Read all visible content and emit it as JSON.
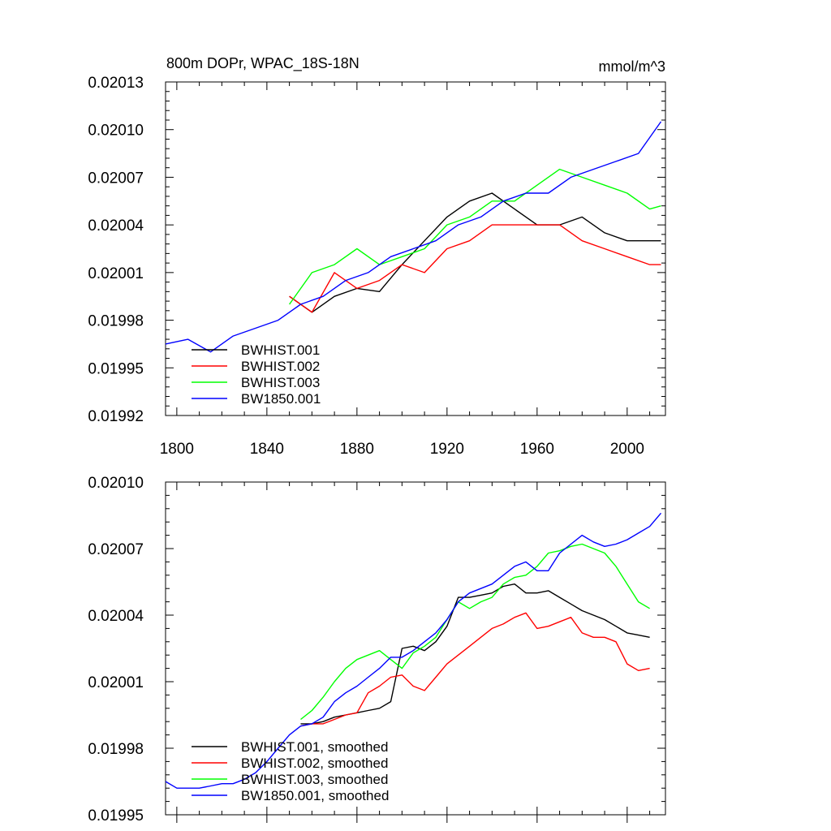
{
  "chart_data": [
    {
      "type": "line",
      "title_left": "800m DOPr, WPAC_18S-18N",
      "title_right": "mmol/m^3",
      "xlabel": "",
      "ylabel": "",
      "xlim": [
        1795,
        2017
      ],
      "ylim": [
        0.01992,
        0.02013
      ],
      "xticks": [
        1800,
        1840,
        1880,
        1920,
        1960,
        2000
      ],
      "xtick_labels": [
        "1800",
        "1840",
        "1880",
        "1920",
        "1960",
        "2000"
      ],
      "yticks": [
        0.01992,
        0.01995,
        0.01998,
        0.02001,
        0.02004,
        0.02007,
        0.0201,
        0.02013
      ],
      "ytick_labels": [
        "0.01992",
        "0.01995",
        "0.01998",
        "0.02001",
        "0.02004",
        "0.02007",
        "0.02010",
        "0.02013"
      ],
      "legend_position": "bottom-left",
      "series": [
        {
          "name": "BWHIST.001",
          "color": "#000000",
          "x": [
            1850,
            1860,
            1870,
            1880,
            1890,
            1900,
            1910,
            1920,
            1930,
            1940,
            1950,
            1960,
            1970,
            1980,
            1990,
            2000,
            2010,
            2015
          ],
          "y": [
            0.019995,
            0.019985,
            0.019995,
            0.02,
            0.019998,
            0.020015,
            0.02003,
            0.020045,
            0.020055,
            0.02006,
            0.02005,
            0.02004,
            0.02004,
            0.020045,
            0.020035,
            0.02003,
            0.02003,
            0.02003
          ]
        },
        {
          "name": "BWHIST.002",
          "color": "#ff0000",
          "x": [
            1850,
            1860,
            1870,
            1880,
            1890,
            1900,
            1910,
            1920,
            1930,
            1940,
            1950,
            1960,
            1970,
            1980,
            1990,
            2000,
            2010,
            2015
          ],
          "y": [
            0.019995,
            0.019985,
            0.02001,
            0.02,
            0.020005,
            0.020015,
            0.02001,
            0.020025,
            0.02003,
            0.02004,
            0.02004,
            0.02004,
            0.02004,
            0.02003,
            0.020025,
            0.02002,
            0.020015,
            0.020015
          ]
        },
        {
          "name": "BWHIST.003",
          "color": "#00ff00",
          "x": [
            1850,
            1860,
            1870,
            1880,
            1890,
            1900,
            1910,
            1920,
            1930,
            1940,
            1950,
            1960,
            1970,
            1980,
            1990,
            2000,
            2010,
            2015
          ],
          "y": [
            0.01999,
            0.02001,
            0.020015,
            0.020025,
            0.020015,
            0.02002,
            0.020025,
            0.02004,
            0.020045,
            0.020055,
            0.020055,
            0.020065,
            0.020075,
            0.02007,
            0.020065,
            0.02006,
            0.02005,
            0.020052
          ]
        },
        {
          "name": "BW1850.001",
          "color": "#0000ff",
          "x": [
            1795,
            1805,
            1815,
            1825,
            1835,
            1845,
            1855,
            1865,
            1875,
            1885,
            1895,
            1905,
            1915,
            1925,
            1935,
            1945,
            1955,
            1965,
            1975,
            1985,
            1995,
            2005,
            2010,
            2015
          ],
          "y": [
            0.019965,
            0.019968,
            0.01996,
            0.01997,
            0.019975,
            0.01998,
            0.01999,
            0.019995,
            0.020005,
            0.02001,
            0.02002,
            0.020025,
            0.02003,
            0.02004,
            0.020045,
            0.020055,
            0.02006,
            0.02006,
            0.02007,
            0.020075,
            0.02008,
            0.020085,
            0.020095,
            0.020105
          ]
        }
      ]
    },
    {
      "type": "line",
      "xlim": [
        1795,
        2017
      ],
      "ylim": [
        0.01995,
        0.0201
      ],
      "xticks": [
        1800,
        1840,
        1880,
        1920,
        1960,
        2000
      ],
      "yticks": [
        0.01995,
        0.01998,
        0.02001,
        0.02004,
        0.02007,
        0.0201
      ],
      "ytick_labels": [
        "0.01995",
        "0.01998",
        "0.02001",
        "0.02004",
        "0.02007",
        "0.02010"
      ],
      "legend_position": "bottom-left",
      "series": [
        {
          "name": "BWHIST.001, smoothed",
          "color": "#000000",
          "x": [
            1855,
            1860,
            1865,
            1870,
            1875,
            1880,
            1885,
            1890,
            1895,
            1900,
            1905,
            1910,
            1915,
            1920,
            1925,
            1930,
            1935,
            1940,
            1945,
            1950,
            1955,
            1960,
            1965,
            1970,
            1975,
            1980,
            1985,
            1990,
            1995,
            2000,
            2005,
            2010
          ],
          "y": [
            0.019991,
            0.019991,
            0.019992,
            0.019994,
            0.019995,
            0.019996,
            0.019997,
            0.019998,
            0.020001,
            0.020025,
            0.020026,
            0.020024,
            0.020028,
            0.020035,
            0.020048,
            0.020048,
            0.020049,
            0.02005,
            0.020053,
            0.020054,
            0.02005,
            0.02005,
            0.020051,
            0.020048,
            0.020045,
            0.020042,
            0.02004,
            0.020038,
            0.020035,
            0.020032,
            0.020031,
            0.02003
          ]
        },
        {
          "name": "BWHIST.002, smoothed",
          "color": "#ff0000",
          "x": [
            1855,
            1860,
            1865,
            1870,
            1875,
            1880,
            1885,
            1890,
            1895,
            1900,
            1905,
            1910,
            1915,
            1920,
            1925,
            1930,
            1935,
            1940,
            1945,
            1950,
            1955,
            1960,
            1965,
            1970,
            1975,
            1980,
            1985,
            1990,
            1995,
            2000,
            2005,
            2010
          ],
          "y": [
            0.01999,
            0.019991,
            0.019991,
            0.019993,
            0.019995,
            0.019996,
            0.020005,
            0.020008,
            0.020012,
            0.020013,
            0.020008,
            0.020006,
            0.020012,
            0.020018,
            0.020022,
            0.020026,
            0.02003,
            0.020034,
            0.020036,
            0.020039,
            0.020041,
            0.020034,
            0.020035,
            0.020037,
            0.020039,
            0.020032,
            0.02003,
            0.02003,
            0.020028,
            0.020018,
            0.020015,
            0.020016
          ]
        },
        {
          "name": "BWHIST.003, smoothed",
          "color": "#00ff00",
          "x": [
            1855,
            1860,
            1865,
            1870,
            1875,
            1880,
            1885,
            1890,
            1895,
            1900,
            1905,
            1910,
            1915,
            1920,
            1925,
            1930,
            1935,
            1940,
            1945,
            1950,
            1955,
            1960,
            1965,
            1970,
            1975,
            1980,
            1985,
            1990,
            1995,
            2000,
            2005,
            2010
          ],
          "y": [
            0.019993,
            0.019997,
            0.020003,
            0.02001,
            0.020016,
            0.02002,
            0.020022,
            0.020024,
            0.02002,
            0.020016,
            0.020023,
            0.020026,
            0.02003,
            0.020038,
            0.020046,
            0.020043,
            0.020046,
            0.020048,
            0.020054,
            0.020057,
            0.020058,
            0.020062,
            0.020068,
            0.020069,
            0.020071,
            0.020072,
            0.02007,
            0.020068,
            0.020062,
            0.020054,
            0.020046,
            0.020043
          ]
        },
        {
          "name": "BW1850.001, smoothed",
          "color": "#0000ff",
          "x": [
            1795,
            1800,
            1805,
            1810,
            1815,
            1820,
            1825,
            1830,
            1835,
            1840,
            1845,
            1850,
            1855,
            1860,
            1865,
            1870,
            1875,
            1880,
            1885,
            1890,
            1895,
            1900,
            1905,
            1910,
            1915,
            1920,
            1925,
            1930,
            1935,
            1940,
            1945,
            1950,
            1955,
            1960,
            1965,
            1970,
            1975,
            1980,
            1985,
            1990,
            1995,
            2000,
            2005,
            2010,
            2015
          ],
          "y": [
            0.019965,
            0.019962,
            0.019962,
            0.019962,
            0.019963,
            0.019964,
            0.019964,
            0.019966,
            0.019969,
            0.019974,
            0.01998,
            0.019986,
            0.01999,
            0.019991,
            0.019994,
            0.020001,
            0.020005,
            0.020008,
            0.020012,
            0.020016,
            0.020021,
            0.020021,
            0.020024,
            0.020028,
            0.020032,
            0.020038,
            0.020046,
            0.02005,
            0.020052,
            0.020054,
            0.020058,
            0.020062,
            0.020064,
            0.02006,
            0.02006,
            0.020068,
            0.020072,
            0.020076,
            0.020073,
            0.020071,
            0.020072,
            0.020074,
            0.020077,
            0.02008,
            0.020086
          ]
        }
      ]
    }
  ]
}
